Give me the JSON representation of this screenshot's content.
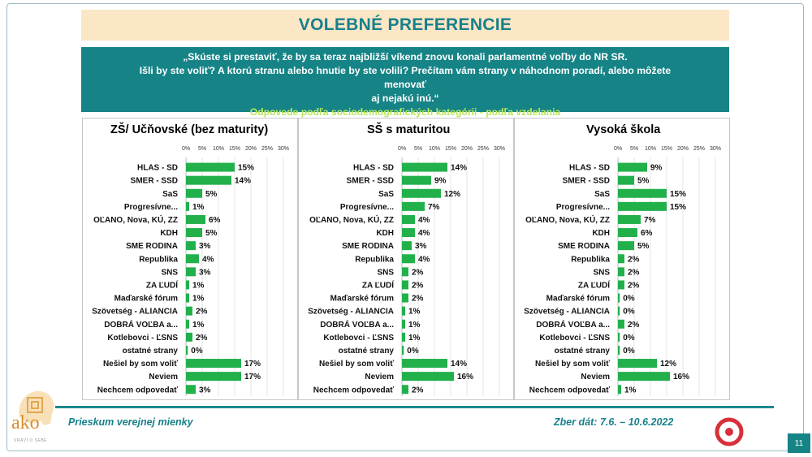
{
  "title": "VOLEBNÉ PREFERENCIE",
  "question": {
    "line1": "„Skúste si prestaviť, že by sa teraz najbližší víkend znovu konali parlamentné voľby do NR SR.",
    "line2": "Išli by ste voliť? A ktorú stranu alebo hnutie by ste volili? Prečítam vám strany v náhodnom poradí, alebo môžete menovať",
    "line3": "aj nejakú inú.“",
    "subtitle": "Odpovede podľa sociodemografických kategórii - podľa vzdelania"
  },
  "colors": {
    "bar": "#22b04b",
    "teal": "#168487",
    "title_bg": "#fbe6c6",
    "footer_text": "#17808a"
  },
  "chart_data": [
    {
      "type": "bar",
      "orientation": "horizontal",
      "title": "ZŠ/ Učňovské (bez maturity)",
      "xlim": [
        0,
        30
      ],
      "ticks": [
        "0%",
        "5%",
        "10%",
        "15%",
        "20%",
        "25%",
        "30%"
      ],
      "categories": [
        "HLAS - SD",
        "SMER - SSD",
        "SaS",
        "Progresívne...",
        "OĽANO, Nova, KÚ, ZZ",
        "KDH",
        "SME RODINA",
        "Republika",
        "SNS",
        "ZA ĽUDÍ",
        "Maďarské fórum",
        "Szövetség - ALIANCIA",
        "DOBRÁ VOĽBA a...",
        "Kotlebovci - ĽSNS",
        "ostatné strany",
        "Nešiel by som voliť",
        "Neviem",
        "Nechcem odpovedať"
      ],
      "values": [
        15,
        14,
        5,
        1,
        6,
        5,
        3,
        4,
        3,
        1,
        1,
        2,
        1,
        2,
        0,
        17,
        17,
        3
      ],
      "labels": [
        "15%",
        "14%",
        "5%",
        "1%",
        "6%",
        "5%",
        "3%",
        "4%",
        "3%",
        "1%",
        "1%",
        "2%",
        "1%",
        "2%",
        "0%",
        "17%",
        "17%",
        "3%"
      ]
    },
    {
      "type": "bar",
      "orientation": "horizontal",
      "title": "SŠ s maturitou",
      "xlim": [
        0,
        30
      ],
      "ticks": [
        "0%",
        "5%",
        "10%",
        "15%",
        "20%",
        "25%",
        "30%"
      ],
      "categories": [
        "HLAS - SD",
        "SMER - SSD",
        "SaS",
        "Progresívne...",
        "OĽANO, Nova, KÚ, ZZ",
        "KDH",
        "SME RODINA",
        "Republika",
        "SNS",
        "ZA ĽUDÍ",
        "Maďarské fórum",
        "Szövetség - ALIANCIA",
        "DOBRÁ VOĽBA a...",
        "Kotlebovci - ĽSNS",
        "ostatné strany",
        "Nešiel by som voliť",
        "Neviem",
        "Nechcem odpovedať"
      ],
      "values": [
        14,
        9,
        12,
        7,
        4,
        4,
        3,
        4,
        2,
        2,
        2,
        1,
        1,
        1,
        0,
        14,
        16,
        2
      ],
      "labels": [
        "14%",
        "9%",
        "12%",
        "7%",
        "4%",
        "4%",
        "3%",
        "4%",
        "2%",
        "2%",
        "2%",
        "1%",
        "1%",
        "1%",
        "0%",
        "14%",
        "16%",
        "2%"
      ]
    },
    {
      "type": "bar",
      "orientation": "horizontal",
      "title": "Vysoká škola",
      "xlim": [
        0,
        30
      ],
      "ticks": [
        "0%",
        "5%",
        "10%",
        "15%",
        "20%",
        "25%",
        "30%"
      ],
      "categories": [
        "HLAS - SD",
        "SMER - SSD",
        "SaS",
        "Progresívne...",
        "OĽANO, Nova, KÚ, ZZ",
        "KDH",
        "SME RODINA",
        "Republika",
        "SNS",
        "ZA ĽUDÍ",
        "Maďarské fórum",
        "Szövetség - ALIANCIA",
        "DOBRÁ VOĽBA a...",
        "Kotlebovci - ĽSNS",
        "ostatné strany",
        "Nešiel by som voliť",
        "Neviem",
        "Nechcem odpovedať"
      ],
      "values": [
        9,
        5,
        15,
        15,
        7,
        6,
        5,
        2,
        2,
        2,
        0,
        0,
        2,
        0,
        0,
        12,
        16,
        1
      ],
      "labels": [
        "9%",
        "5%",
        "15%",
        "15%",
        "7%",
        "6%",
        "5%",
        "2%",
        "2%",
        "2%",
        "0%",
        "0%",
        "2%",
        "0%",
        "0%",
        "12%",
        "16%",
        "1%"
      ]
    }
  ],
  "footer": {
    "left": "Prieskum verejnej mienky",
    "right": "Zber dát: 7.6. – 10.6.2022",
    "page": "11"
  },
  "logo": {
    "name": "ako",
    "tagline": "VRÁVÍ O SEBE"
  }
}
